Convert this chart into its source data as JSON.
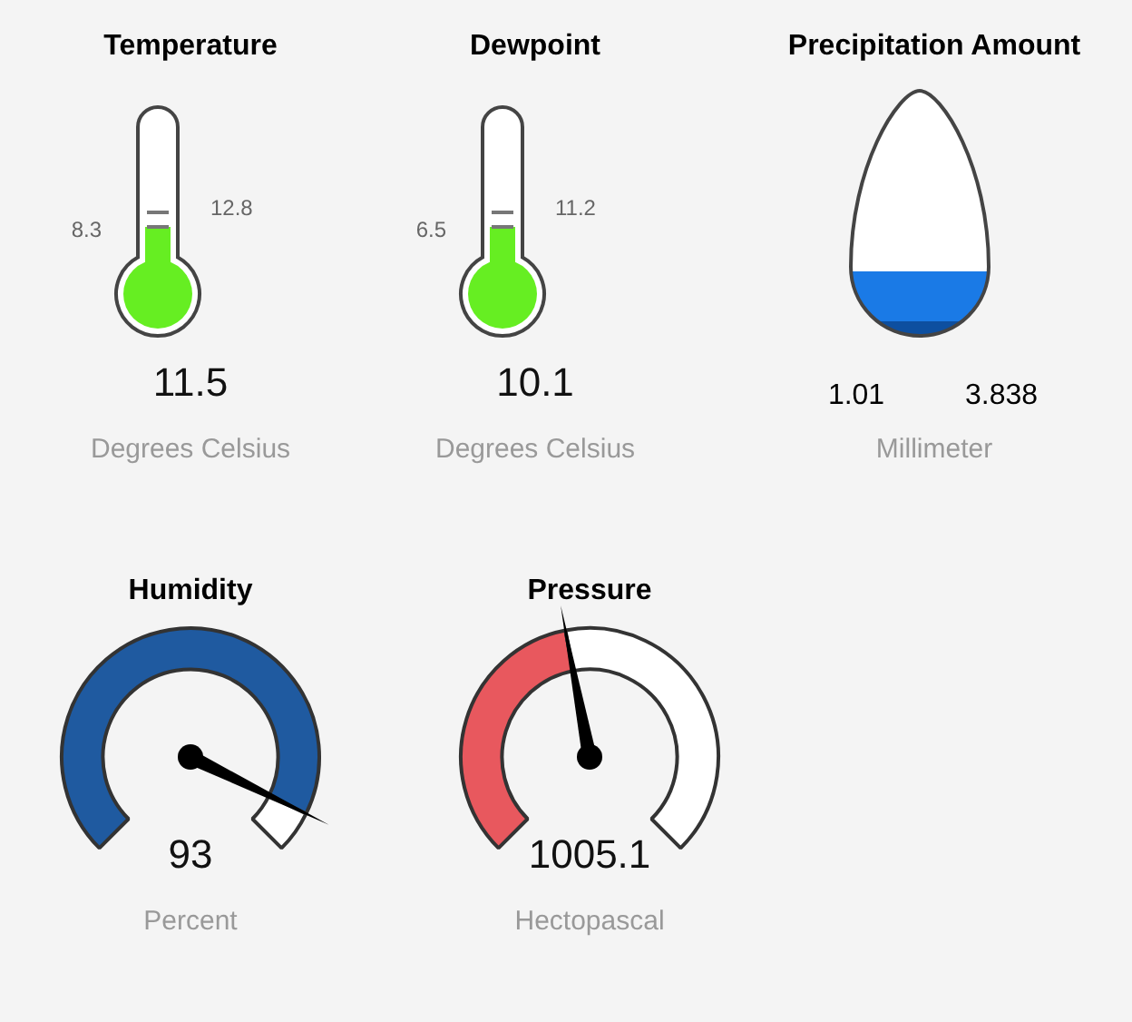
{
  "chart_data": [
    {
      "type": "other",
      "title": "Temperature",
      "values": [
        11.5
      ],
      "data_labels": true,
      "color": "#66ee22",
      "annotations": [
        "8.3",
        "12.8",
        "Degrees Celsius"
      ]
    },
    {
      "type": "other",
      "title": "Dewpoint",
      "values": [
        10.1
      ],
      "data_labels": true,
      "color": "#66ee22",
      "annotations": [
        "6.5",
        "11.2",
        "Degrees Celsius"
      ]
    },
    {
      "type": "other",
      "title": "Precipitation Amount",
      "values": [
        1.01,
        3.838
      ],
      "data_labels": true,
      "color": "#1a7ae6",
      "annotations": [
        "Millimeter"
      ]
    },
    {
      "type": "donut",
      "title": "Humidity",
      "categories": [
        null,
        null
      ],
      "values": [
        93,
        7
      ],
      "colors": [
        "#1f5aa0",
        "#ffffff"
      ],
      "annotations": [
        "93",
        "Percent"
      ]
    },
    {
      "type": "donut",
      "title": "Pressure",
      "categories": [
        null,
        null
      ],
      "values": [
        46,
        54
      ],
      "colors": [
        "#e8585e",
        "#ffffff"
      ],
      "annotations": [
        "1005.1",
        "Hectopascal"
      ]
    }
  ]
}
